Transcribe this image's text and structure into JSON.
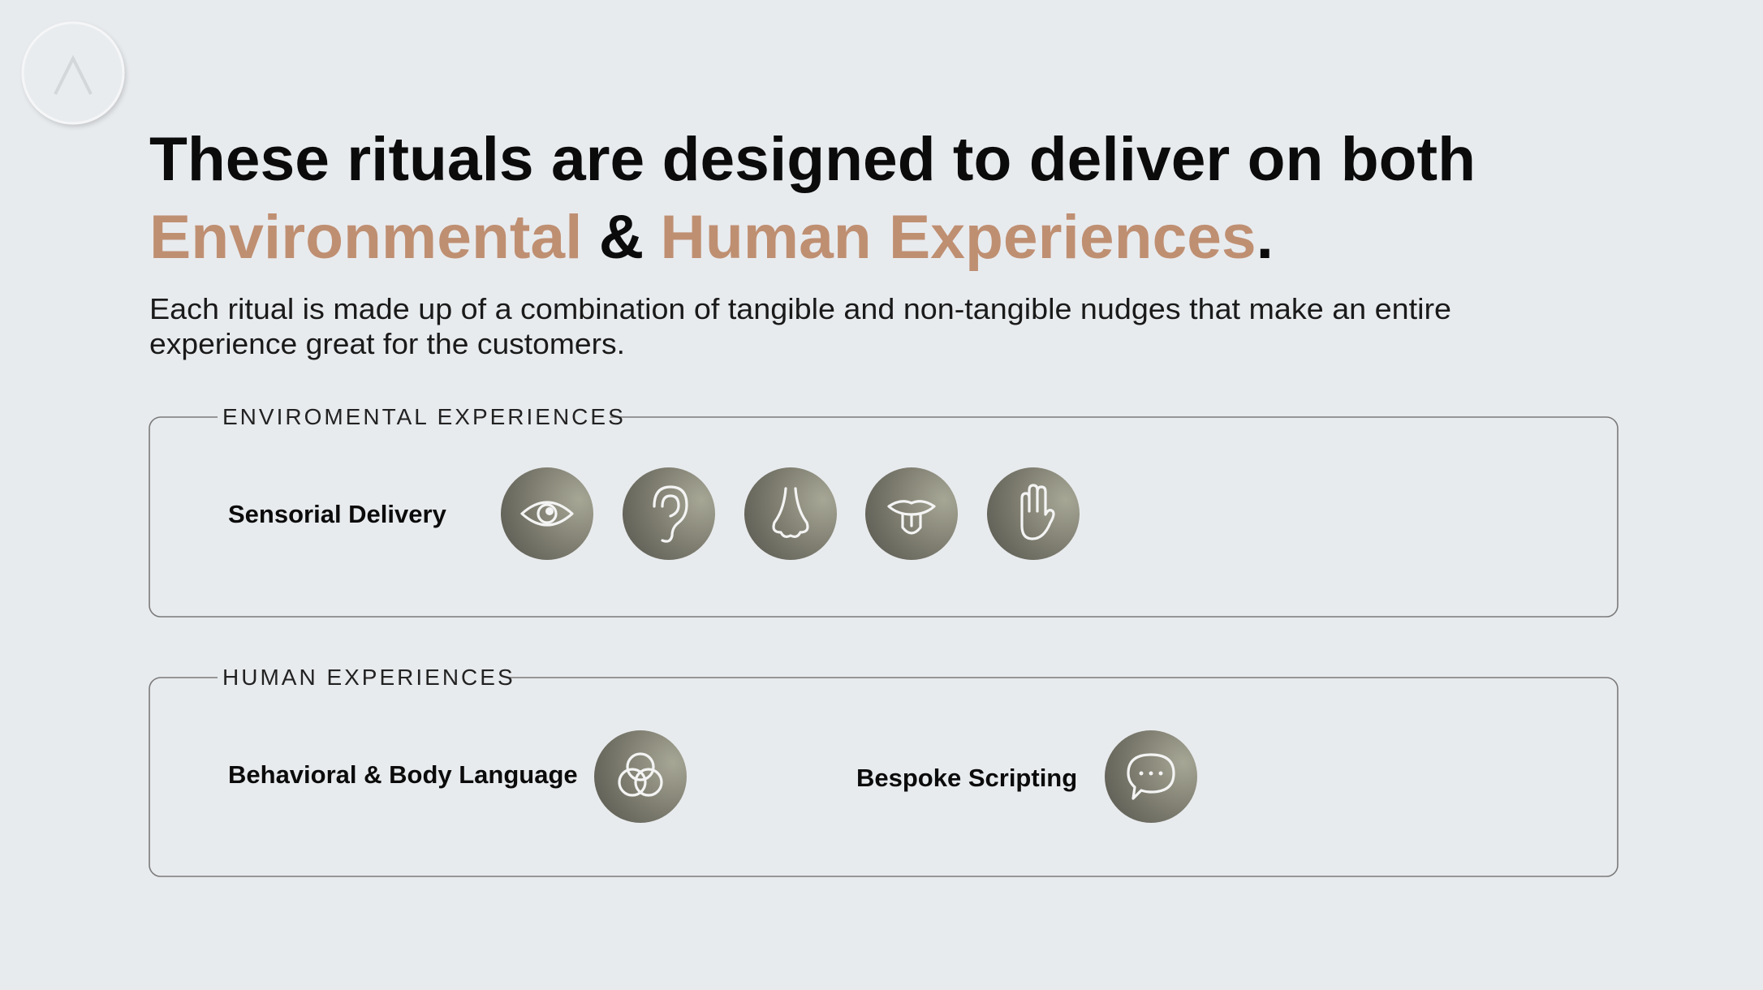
{
  "header": {
    "title_line_1": "These rituals are designed to deliver on both",
    "highlight_1": "Environmental",
    "connector": "&",
    "highlight_2": "Human Experiences",
    "end": ".",
    "subtitle_line_1": "Each ritual is made up of a combination of tangible and non-tangible nudges that make an entire",
    "subtitle_line_2": "experience great for the customers."
  },
  "sections": [
    {
      "label": "ENVIROMENTAL EXPERIENCES",
      "items": [
        {
          "label": "Sensorial Delivery"
        }
      ]
    },
    {
      "label": "HUMAN EXPERIENCES",
      "items": [
        {
          "label": "Behavioral & Body Language"
        },
        {
          "label": "Bespoke Scripting"
        }
      ]
    }
  ]
}
